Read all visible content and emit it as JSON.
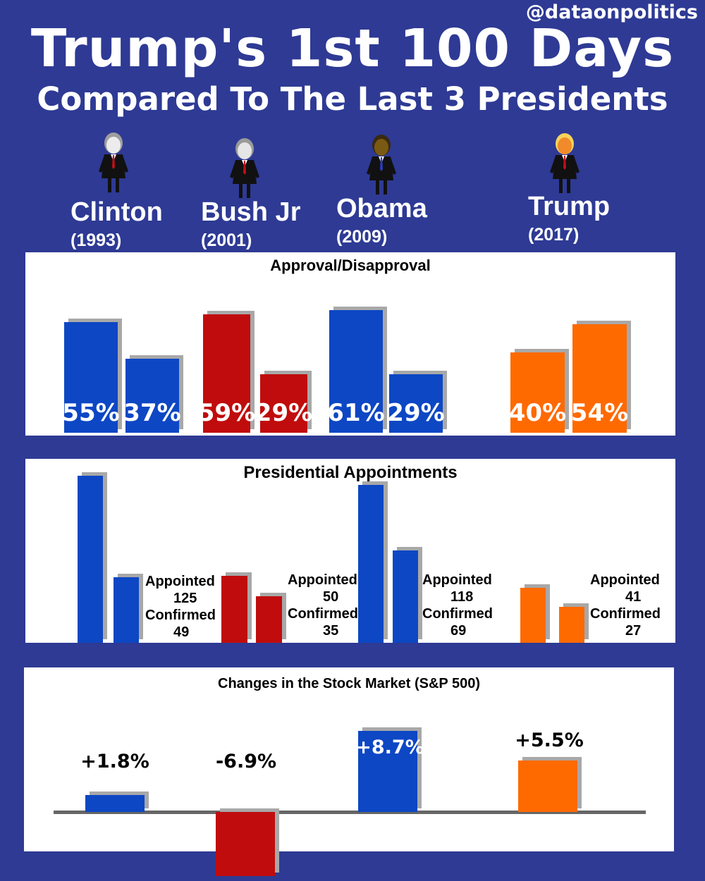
{
  "header": {
    "handle": "@dataonpolitics",
    "title": "Trump's 1st 100 Days",
    "subtitle": "Compared To The Last 3 Presidents"
  },
  "presidents": [
    {
      "name": "Clinton",
      "year": "(1993)",
      "icon": "clinton-figure-icon",
      "hair": "#9e9e9e",
      "face": "#ececec"
    },
    {
      "name": "Bush Jr",
      "year": "(2001)",
      "icon": "bush-figure-icon",
      "hair": "#9a9a9a",
      "face": "#e6e6e6"
    },
    {
      "name": "Obama",
      "year": "(2009)",
      "icon": "obama-figure-icon",
      "hair": "#3a2a10",
      "face": "#7a5a12"
    },
    {
      "name": "Trump",
      "year": "(2017)",
      "icon": "trump-figure-icon",
      "hair": "#f5d35a",
      "face": "#f08a2a"
    }
  ],
  "colors": {
    "background": "#2e3a94",
    "democrat_blue": "#0d47c4",
    "republican_red": "#c00c0c",
    "trump_orange": "#ff6a00",
    "shadow": "#a8a8a8"
  },
  "chart_data": [
    {
      "type": "bar",
      "title": "Approval/Disapproval",
      "categories": [
        "Clinton",
        "Bush Jr",
        "Obama",
        "Trump"
      ],
      "series": [
        {
          "values": [
            55,
            59,
            61,
            40
          ]
        },
        {
          "values": [
            37,
            29,
            29,
            54
          ]
        }
      ],
      "labels": [
        [
          "55%",
          "37%"
        ],
        [
          "59%",
          "29%"
        ],
        [
          "61%",
          "29%"
        ],
        [
          "40%",
          "54%"
        ]
      ],
      "colors": [
        "#0d47c4",
        "#c00c0c",
        "#0d47c4",
        "#ff6a00"
      ]
    },
    {
      "type": "bar",
      "title": "Presidential Appointments",
      "categories": [
        "Clinton",
        "Bush Jr",
        "Obama",
        "Trump"
      ],
      "series": [
        {
          "name": "Appointed",
          "values": [
            125,
            50,
            118,
            41
          ]
        },
        {
          "name": "Confirmed",
          "values": [
            49,
            35,
            69,
            27
          ]
        }
      ],
      "colors": [
        "#0d47c4",
        "#c00c0c",
        "#0d47c4",
        "#ff6a00"
      ]
    },
    {
      "type": "bar",
      "title": "Changes in the Stock Market (S&P 500)",
      "categories": [
        "Clinton",
        "Bush Jr",
        "Obama",
        "Trump"
      ],
      "values": [
        1.8,
        -6.9,
        8.7,
        5.5
      ],
      "labels": [
        "+1.8%",
        "-6.9%",
        "+8.7%",
        "+5.5%"
      ],
      "colors": [
        "#0d47c4",
        "#c00c0c",
        "#0d47c4",
        "#ff6a00"
      ]
    }
  ]
}
